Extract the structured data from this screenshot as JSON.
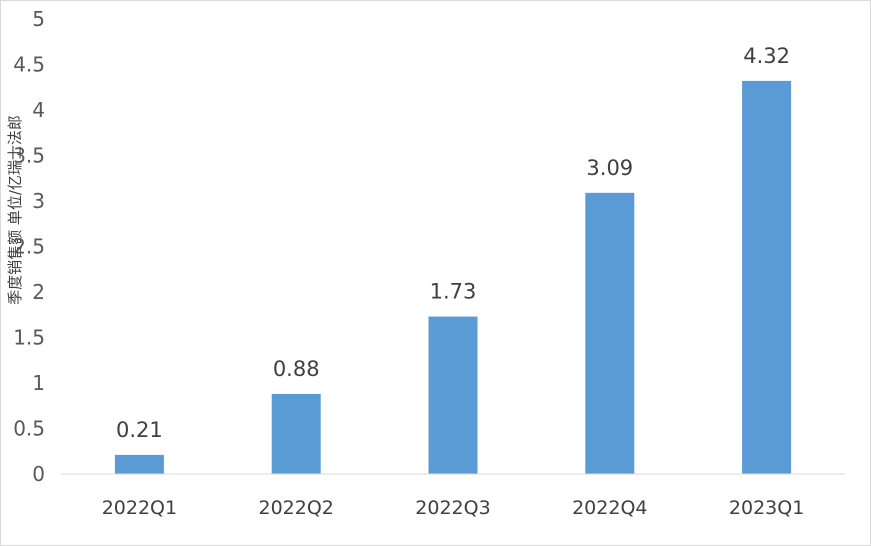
{
  "chart_data": {
    "type": "bar",
    "title": "",
    "xlabel": "",
    "ylabel": "季度销售额 单位/亿瑞士法郎",
    "categories": [
      "2022Q1",
      "2022Q2",
      "2022Q3",
      "2022Q4",
      "2023Q1"
    ],
    "values": [
      0.21,
      0.88,
      1.73,
      3.09,
      4.32
    ],
    "data_labels": [
      "0.21",
      "0.88",
      "1.73",
      "3.09",
      "4.32"
    ],
    "ylim": [
      0,
      5
    ],
    "yticks": [
      "0",
      "0.5",
      "1",
      "1.5",
      "2",
      "2.5",
      "3",
      "3.5",
      "4",
      "4.5",
      "5"
    ],
    "grid": false,
    "legend": "none",
    "bar_color": "#5b9bd5"
  }
}
